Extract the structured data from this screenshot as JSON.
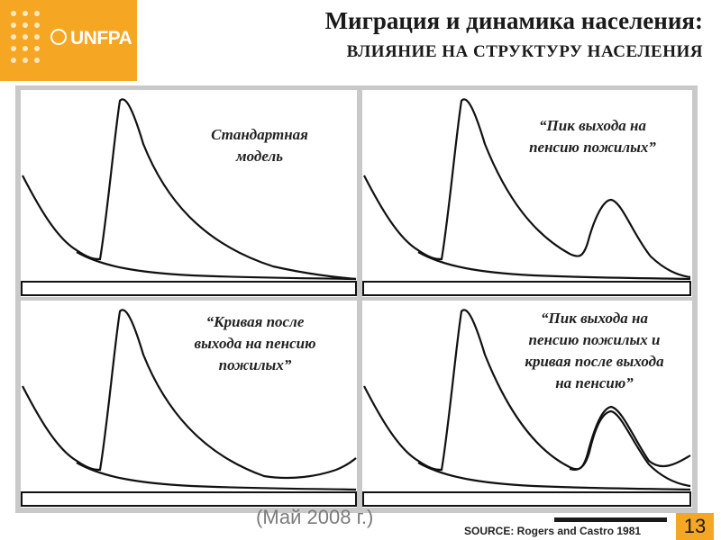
{
  "logo": {
    "text": "UNFPA"
  },
  "header": {
    "title": "Миграция и динамика населения:",
    "subtitle": "ВЛИЯНИЕ НА СТРУКТУРУ НАСЕЛЕНИЯ"
  },
  "panels": [
    {
      "caption": "Стандартная модель",
      "lines": [
        "Стандартная",
        "модель"
      ]
    },
    {
      "caption": "“Пик выхода на пенсию пожилых”",
      "lines": [
        "“Пик выхода на",
        "пенсию пожилых”"
      ]
    },
    {
      "caption": "“Кривая после выхода на пенсию пожилых”",
      "lines": [
        "“Кривая после",
        "выхода на пенсию",
        "пожилых”"
      ]
    },
    {
      "caption": "“Пик выхода на пенсию пожилых и кривая после выхода на пенсию”",
      "lines": [
        "“Пик выхода на",
        "пенсию пожилых и",
        "кривая после выхода",
        "на пенсию”"
      ]
    }
  ],
  "footer": {
    "ghost_text": "(Май 2008 г.)",
    "source": "SOURCE: Rogers and Castro 1981",
    "page_number": "13"
  },
  "colors": {
    "accent": "#f5a623",
    "curve": "#111111"
  }
}
